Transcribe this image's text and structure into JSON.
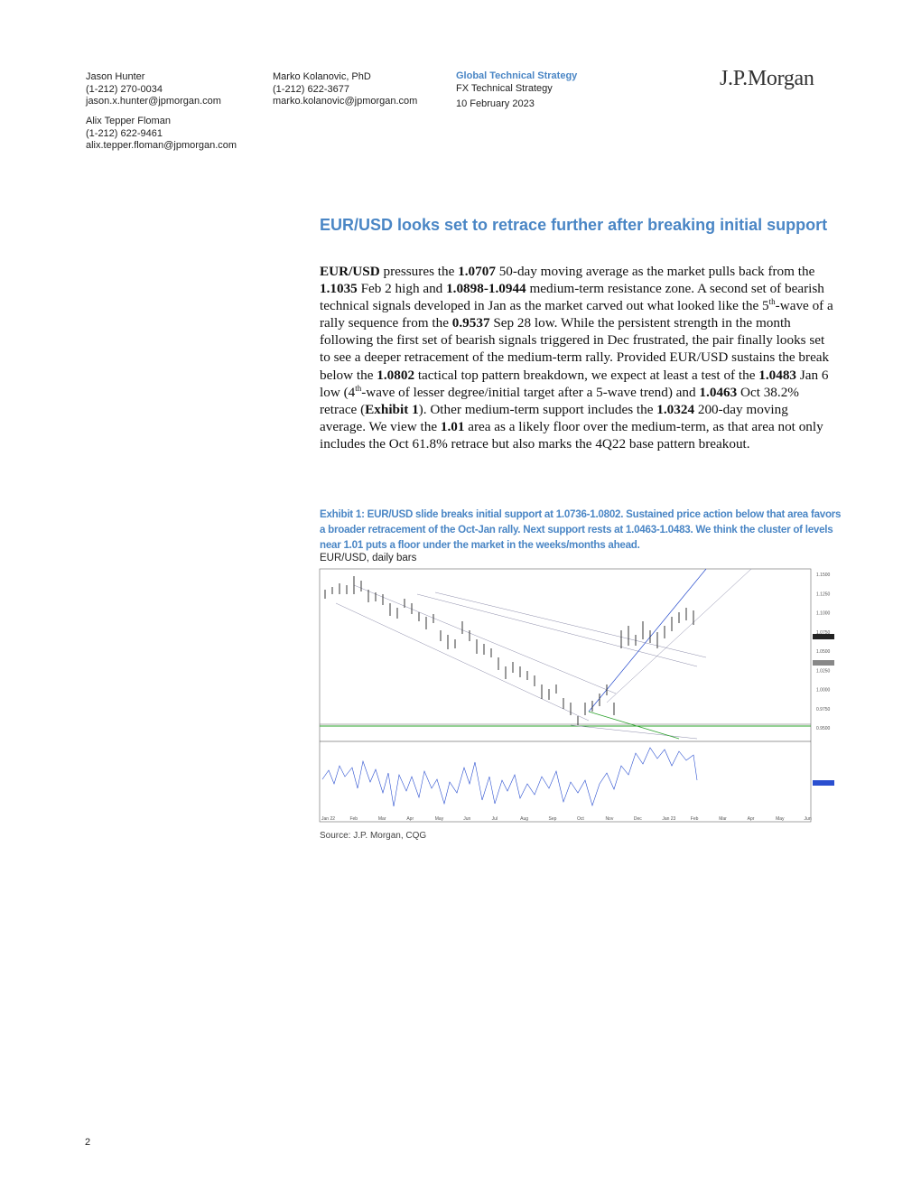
{
  "header": {
    "authors": [
      {
        "name": "Jason Hunter",
        "phone": "(1-212) 270-0034",
        "email": "jason.x.hunter@jpmorgan.com"
      },
      {
        "name": "Alix Tepper Floman",
        "phone": "(1-212) 622-9461",
        "email": "alix.tepper.floman@jpmorgan.com"
      },
      {
        "name": "Marko Kolanovic, PhD",
        "phone": "(1-212) 622-3677",
        "email": "marko.kolanovic@jpmorgan.com"
      }
    ],
    "department": "Global Technical Strategy",
    "publication": "FX Technical Strategy",
    "date": "10 February 2023",
    "logo": "J.P.Morgan"
  },
  "title": "EUR/USD looks set to retrace further after breaking initial support",
  "body": [
    "EUR/USD",
    " pressures the ",
    "1.0707",
    " 50-day moving average as the market pulls back from the ",
    "1.1035",
    " Feb 2 high and ",
    "1.0898-1.0944",
    " medium-term resistance zone. A second set of bearish technical signals developed in Jan as the market carved out what looked like the 5",
    "th",
    "-wave of a rally sequence from the ",
    "0.9537",
    " Sep 28 low. While the persistent strength in the month following the first set of bearish signals triggered in Dec frustrated, the pair finally looks set to see a deeper retracement of the medium-term rally. Provided EUR/USD sustains the break below the ",
    "1.0802",
    " tactical top pattern breakdown, we expect at least a test of the ",
    "1.0483",
    " Jan 6 low (4",
    "th",
    "-wave of lesser degree/initial target after a 5-wave trend) and ",
    "1.0463",
    " Oct 38.2% retrace (",
    "Exhibit 1",
    "). Other medium-term support includes the ",
    "1.0324",
    " 200-day moving average. We view the ",
    "1.01",
    " area as a likely floor over the medium-term, as that area not only includes the Oct 61.8% retrace but also marks the 4Q22 base pattern breakout."
  ],
  "exhibit": {
    "caption": "Exhibit 1: EUR/USD slide breaks initial support at 1.0736-1.0802. Sustained price action below that area favors a broader retracement of the Oct-Jan rally. Next support rests at 1.0463-1.0483. We think the cluster of levels near 1.01 puts a floor under the market in the weeks/months ahead.",
    "subtitle": "EUR/USD, daily bars",
    "y_labels": [
      "1.1500",
      "1.1250",
      "1.1000",
      "1.0750",
      "1.0500",
      "1.0250",
      "1.0000",
      "0.9750",
      "0.9500"
    ],
    "x_labels": [
      "Jan 22",
      "Feb",
      "Mar",
      "Apr",
      "May",
      "Jun",
      "Jul",
      "Aug",
      "Sep",
      "Oct",
      "Nov",
      "Dec",
      "Jan 23",
      "Feb",
      "Mar",
      "Apr",
      "May",
      "Jun"
    ],
    "source": "Source: J.P. Morgan, CQG"
  },
  "page_number": "2"
}
